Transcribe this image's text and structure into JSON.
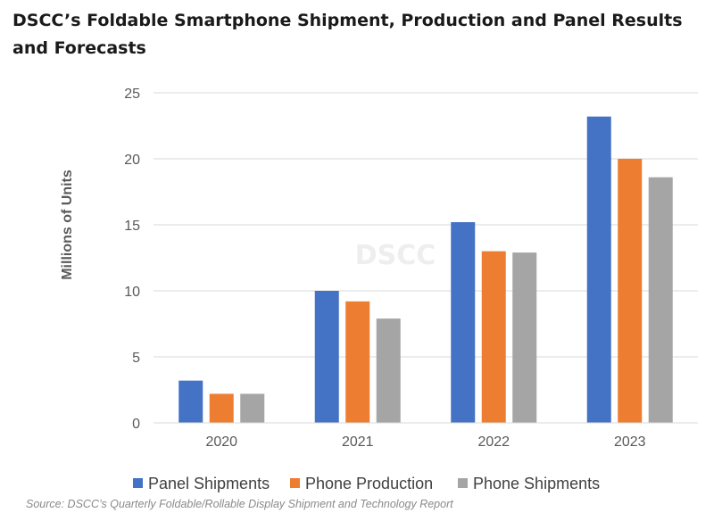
{
  "title": "DSCC’s Foldable Smartphone Shipment, Production and Panel Results and Forecasts",
  "source": "Source: DSCC’s Quarterly Foldable/Rollable Display Shipment and Technology Report",
  "watermark": "DSCC",
  "chart_data": {
    "type": "bar",
    "categories": [
      "2020",
      "2021",
      "2022",
      "2023"
    ],
    "series": [
      {
        "name": "Panel Shipments",
        "color": "#4472C4",
        "values": [
          3.2,
          10.0,
          15.2,
          23.2
        ]
      },
      {
        "name": "Phone Production",
        "color": "#ED7D31",
        "values": [
          2.2,
          9.2,
          13.0,
          20.0
        ]
      },
      {
        "name": "Phone Shipments",
        "color": "#A5A5A5",
        "values": [
          2.2,
          7.9,
          12.9,
          18.6
        ]
      }
    ],
    "ylabel": "Millions of Units",
    "ylim": [
      0,
      25
    ],
    "yticks": [
      0,
      5,
      10,
      15,
      20,
      25
    ],
    "grid": true,
    "legend": "bottom"
  }
}
